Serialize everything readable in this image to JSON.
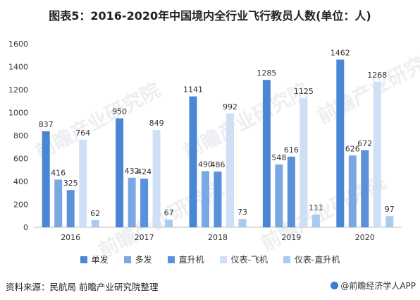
{
  "chart_data": {
    "type": "bar",
    "title": "图表5：2016-2020年中国境内全行业飞行教员人数(单位：人)",
    "categories": [
      "2016",
      "2017",
      "2018",
      "2019",
      "2020"
    ],
    "series": [
      {
        "name": "单发",
        "color": "#4a86d6",
        "values": [
          837,
          950,
          1141,
          1285,
          1462
        ]
      },
      {
        "name": "多发",
        "color": "#7aa8e4",
        "values": [
          416,
          432,
          490,
          548,
          626
        ]
      },
      {
        "name": "直升机",
        "color": "#5b90da",
        "values": [
          325,
          424,
          486,
          616,
          672
        ]
      },
      {
        "name": "仪表-飞机",
        "color": "#cfe0f6",
        "values": [
          764,
          849,
          992,
          1125,
          1268
        ]
      },
      {
        "name": "仪表-直升机",
        "color": "#a9cbf0",
        "values": [
          62,
          67,
          73,
          111,
          97
        ]
      }
    ],
    "yticks": [
      "0",
      "200",
      "400",
      "600",
      "800",
      "1000",
      "1200",
      "1400",
      "1600"
    ],
    "ylim": [
      0,
      1600
    ],
    "grid": false,
    "legend": "bottom"
  },
  "footer": {
    "source": "资料来源：民航局 前瞻产业研究院整理",
    "brand": "@前瞻经济学人APP"
  },
  "watermark_text": "前瞻产业研究院"
}
